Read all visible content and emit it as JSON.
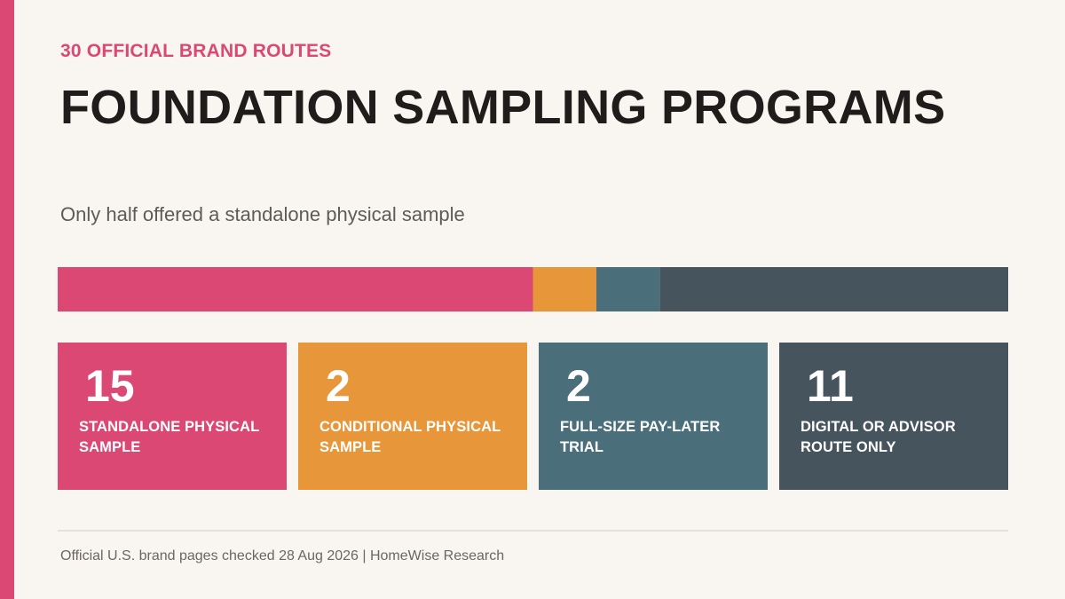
{
  "header": {
    "eyebrow": "30 OFFICIAL BRAND ROUTES",
    "title": "FOUNDATION SAMPLING PROGRAMS",
    "subtitle": "Only half offered a standalone physical sample"
  },
  "footer": {
    "source": "Official U.S. brand pages checked 28 Aug 2026 | HomeWise Research"
  },
  "colors": {
    "accent": "#db4873",
    "background": "#f9f6f1",
    "text_dark": "#1f1c1b",
    "text_muted": "#5f5a57"
  },
  "chart_data": {
    "type": "bar",
    "orientation": "horizontal-stacked",
    "total": 30,
    "categories": [
      "STANDALONE PHYSICAL SAMPLE",
      "CONDITIONAL PHYSICAL SAMPLE",
      "FULL-SIZE PAY-LATER TRIAL",
      "DIGITAL OR ADVISOR ROUTE ONLY"
    ],
    "values": [
      15,
      2,
      2,
      11
    ],
    "colors": [
      "#db4873",
      "#e8963a",
      "#4a6f7b",
      "#46545e"
    ],
    "title": "FOUNDATION SAMPLING PROGRAMS",
    "legend": "cards below bar"
  }
}
